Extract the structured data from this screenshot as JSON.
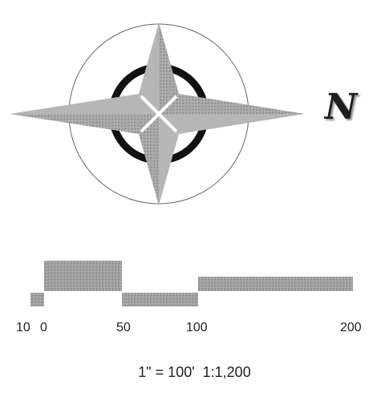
{
  "north_arrow": {
    "letter": "N",
    "icon": "compass-rose-icon",
    "colors": {
      "star_fill": "#a8a8a8",
      "star_shade": "#888888",
      "ring": "#111111",
      "circle_stroke": "#666666"
    }
  },
  "scale_bar": {
    "ticks": [
      "10",
      "0",
      "50",
      "100",
      "200"
    ],
    "representative_fraction": "1\" = 100'  1:1,200",
    "fill_color": "#a2a2a2"
  }
}
